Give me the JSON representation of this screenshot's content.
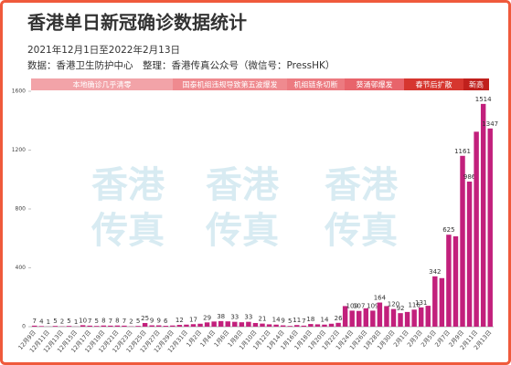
{
  "chart_data": {
    "type": "bar",
    "title": "香港单日新冠确诊数据统计",
    "subtitle": "2021年12月1日至2022年2月13日",
    "source": "数据：香港卫生防护中心　整理：香港传真公众号（微信号：PressHK）",
    "watermark": [
      "香港",
      "传真"
    ],
    "phases": [
      "本地确诊几乎清零",
      "国泰机组违规导致第五波爆发",
      "机组链条切断",
      "葵涌邨爆发",
      "春节后扩散",
      "新高"
    ],
    "phase_colors": [
      "#f2a3a8",
      "#ef8a8f",
      "#ec7a80",
      "#e8646b",
      "#d6362f",
      "#c0201c"
    ],
    "color": "#c2207c",
    "ylim": [
      0,
      1600
    ],
    "yticks": [
      0,
      400,
      800,
      1200,
      1600
    ],
    "categories": [
      "12月9日",
      null,
      "12月11日",
      null,
      "12月13日",
      null,
      "12月15日",
      null,
      "12月17日",
      null,
      "12月19日",
      null,
      "12月21日",
      null,
      "12月23日",
      null,
      "12月25日",
      null,
      "12月27日",
      null,
      "12月29日",
      null,
      "12月31日",
      null,
      "1月2日",
      null,
      "1月4日",
      null,
      "1月6日",
      null,
      "1月8日",
      null,
      "1月10日",
      null,
      "1月12日",
      null,
      "1月14日",
      null,
      "1月16日",
      null,
      "1月18日",
      null,
      "1月20日",
      null,
      "1月22日",
      null,
      "1月24日",
      null,
      "1月26日",
      null,
      "1月28日",
      null,
      "1月30日",
      null,
      "2月1日",
      null,
      "2月3日",
      null,
      "2月5日",
      null,
      "2月7日",
      null,
      "2月9日",
      null,
      "2月11日",
      null,
      "2月13日"
    ],
    "values": [
      7,
      4,
      1,
      5,
      2,
      5,
      1,
      10,
      7,
      5,
      8,
      7,
      8,
      7,
      2,
      5,
      25,
      9,
      9,
      6,
      8,
      12,
      14,
      17,
      20,
      29,
      35,
      38,
      36,
      33,
      30,
      33,
      25,
      21,
      16,
      14,
      9,
      5,
      11,
      7,
      18,
      16,
      14,
      20,
      26,
      140,
      109,
      107,
      125,
      109,
      164,
      140,
      120,
      92,
      100,
      116,
      131,
      142,
      342,
      330,
      625,
      614,
      1161,
      986,
      1325,
      1514,
      1347
    ],
    "value_labels": [
      "7",
      "4",
      "1",
      "5",
      "2",
      "5",
      "1",
      "10",
      "7",
      "5",
      "8",
      "7",
      "8",
      "7",
      "2",
      "5",
      "25",
      "9",
      "9",
      "6",
      null,
      "12",
      null,
      "17",
      null,
      "29",
      null,
      "38",
      null,
      "33",
      null,
      "33",
      null,
      "21",
      null,
      "14",
      "9",
      "5",
      "11",
      "7",
      "18",
      null,
      "14",
      null,
      "26",
      null,
      "109",
      "107",
      null,
      "109",
      "164",
      null,
      "120",
      "92",
      null,
      "116",
      "131",
      null,
      "342",
      null,
      "625",
      null,
      "1161",
      "986",
      null,
      "1514",
      "1347"
    ]
  }
}
